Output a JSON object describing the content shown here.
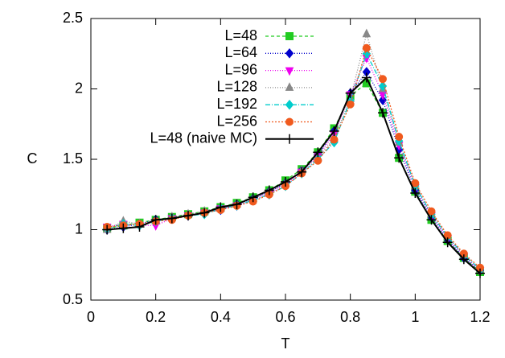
{
  "chart_data": {
    "type": "line",
    "xlabel": "T",
    "ylabel": "C",
    "x": [
      0.05,
      0.1,
      0.15,
      0.2,
      0.25,
      0.3,
      0.35,
      0.4,
      0.45,
      0.5,
      0.55,
      0.6,
      0.65,
      0.7,
      0.75,
      0.8,
      0.85,
      0.9,
      0.95,
      1.0,
      1.05,
      1.1,
      1.15,
      1.2
    ],
    "xlim": [
      0,
      1.2
    ],
    "xticks": [
      0,
      0.2,
      0.4,
      0.6,
      0.8,
      1,
      1.2
    ],
    "ylim": [
      0.5,
      2.5
    ],
    "yticks": [
      0.5,
      1,
      1.5,
      2,
      2.5
    ],
    "legend": "top",
    "series": [
      {
        "name": "L=48",
        "color": "#22cc22",
        "marker": "square",
        "dash": "4,3",
        "values": [
          1.01,
          1.03,
          1.05,
          1.07,
          1.09,
          1.11,
          1.13,
          1.16,
          1.19,
          1.23,
          1.28,
          1.35,
          1.43,
          1.55,
          1.72,
          1.95,
          2.04,
          1.83,
          1.51,
          1.27,
          1.07,
          0.92,
          0.8,
          0.7
        ]
      },
      {
        "name": "L=64",
        "color": "#0000cc",
        "marker": "diamond",
        "dash": "1,2",
        "values": [
          1.0,
          1.02,
          1.04,
          1.07,
          1.08,
          1.1,
          1.12,
          1.14,
          1.18,
          1.22,
          1.27,
          1.33,
          1.42,
          1.53,
          1.7,
          1.97,
          2.12,
          1.92,
          1.57,
          1.28,
          1.09,
          0.93,
          0.8,
          0.71
        ]
      },
      {
        "name": "L=96",
        "color": "#ee00ee",
        "marker": "triangle-down",
        "dash": "1,2",
        "values": [
          1.02,
          1.04,
          1.03,
          1.03,
          1.08,
          1.1,
          1.12,
          1.15,
          1.17,
          1.21,
          1.26,
          1.32,
          1.41,
          1.52,
          1.68,
          1.96,
          2.22,
          1.96,
          1.6,
          1.3,
          1.1,
          0.94,
          0.81,
          0.71
        ]
      },
      {
        "name": "L=128",
        "color": "#888888",
        "marker": "triangle-up",
        "dash": "1,2",
        "values": [
          1.0,
          1.06,
          1.04,
          1.06,
          1.09,
          1.11,
          1.13,
          1.15,
          1.18,
          1.22,
          1.27,
          1.33,
          1.42,
          1.51,
          1.65,
          1.93,
          2.39,
          2.0,
          1.62,
          1.31,
          1.11,
          0.95,
          0.82,
          0.72
        ]
      },
      {
        "name": "L=192",
        "color": "#00cccc",
        "marker": "diamond",
        "dash": "6,2,1,2",
        "values": [
          1.01,
          1.04,
          1.03,
          1.06,
          1.08,
          1.1,
          1.11,
          1.15,
          1.17,
          1.21,
          1.25,
          1.31,
          1.4,
          1.5,
          1.62,
          1.92,
          2.25,
          2.02,
          1.63,
          1.31,
          1.11,
          0.95,
          0.82,
          0.72
        ]
      },
      {
        "name": "L=256",
        "color": "#f05a1e",
        "marker": "circle",
        "dash": "2,2",
        "values": [
          1.02,
          1.03,
          1.04,
          1.06,
          1.07,
          1.1,
          1.12,
          1.14,
          1.17,
          1.2,
          1.25,
          1.31,
          1.4,
          1.49,
          1.64,
          1.89,
          2.29,
          2.07,
          1.66,
          1.33,
          1.13,
          0.96,
          0.83,
          0.73
        ]
      },
      {
        "name": "L=48 (naive MC)",
        "color": "#000000",
        "marker": "plus",
        "dash": "none",
        "values": [
          1.0,
          1.01,
          1.02,
          1.07,
          1.08,
          1.1,
          1.12,
          1.16,
          1.18,
          1.23,
          1.28,
          1.34,
          1.41,
          1.55,
          1.7,
          1.97,
          2.08,
          1.83,
          1.51,
          1.26,
          1.07,
          0.91,
          0.79,
          0.69
        ]
      }
    ]
  }
}
